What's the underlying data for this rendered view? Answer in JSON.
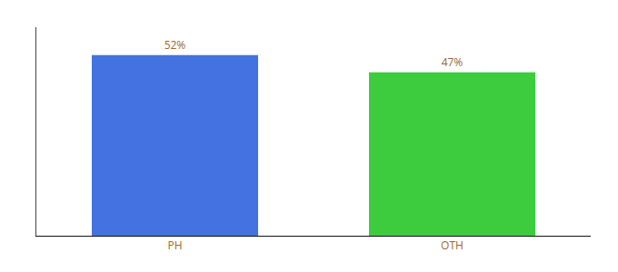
{
  "chart_data": {
    "type": "bar",
    "categories": [
      "PH",
      "OTH"
    ],
    "values": [
      52,
      47
    ],
    "value_labels": [
      "52%",
      "47%"
    ],
    "colors": [
      "#4472e0",
      "#3dcc3d"
    ],
    "ylim": [
      0,
      60
    ],
    "data_labels": true,
    "tick_labels": "x",
    "grid": false
  }
}
